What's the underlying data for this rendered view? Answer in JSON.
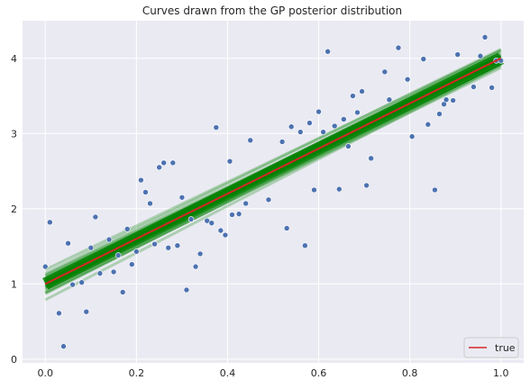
{
  "chart_data": {
    "type": "scatter",
    "title": "Curves drawn from the GP posterior distribution",
    "xlabel": "",
    "ylabel": "",
    "xlim": [
      -0.05,
      1.05
    ],
    "ylim": [
      -0.05,
      4.5
    ],
    "x_ticks": [
      0.0,
      0.2,
      0.4,
      0.6,
      0.8,
      1.0
    ],
    "x_tick_labels": [
      "0.0",
      "0.2",
      "0.4",
      "0.6",
      "0.8",
      "1.0"
    ],
    "y_ticks": [
      0,
      1,
      2,
      3,
      4
    ],
    "y_tick_labels": [
      "0",
      "1",
      "2",
      "3",
      "4"
    ],
    "grid": true,
    "legend": {
      "position": "bottom-right",
      "entries": [
        "true"
      ]
    },
    "colors": {
      "background": "#eaeaf2",
      "grid": "#ffffff",
      "points": "#4c72b0",
      "posterior": "#008000",
      "true_line": "#d62728"
    },
    "true_line": {
      "x": [
        0.0,
        1.0
      ],
      "y": [
        1.0,
        4.0
      ]
    },
    "posterior_band": {
      "x": [
        0.0,
        1.0
      ],
      "mean": [
        1.0,
        4.0
      ],
      "spread_at_start": 0.22,
      "spread_at_end": 0.16,
      "n_curves": 24
    },
    "series": [
      {
        "x": [
          0.0,
          0.01,
          0.03,
          0.04,
          0.05,
          0.06,
          0.08,
          0.09,
          0.1,
          0.11,
          0.12,
          0.14,
          0.15,
          0.16,
          0.17,
          0.18,
          0.19,
          0.2,
          0.21,
          0.22,
          0.23,
          0.24,
          0.25,
          0.26,
          0.27,
          0.28,
          0.29,
          0.3,
          0.31,
          0.32,
          0.33,
          0.34,
          0.355,
          0.365,
          0.375,
          0.385,
          0.395,
          0.405,
          0.41,
          0.425,
          0.44,
          0.45,
          0.49,
          0.52,
          0.53,
          0.54,
          0.56,
          0.57,
          0.58,
          0.59,
          0.6,
          0.61,
          0.62,
          0.635,
          0.645,
          0.655,
          0.665,
          0.675,
          0.685,
          0.695,
          0.705,
          0.715,
          0.745,
          0.755,
          0.775,
          0.795,
          0.805,
          0.83,
          0.84,
          0.855,
          0.865,
          0.875,
          0.88,
          0.895,
          0.905,
          0.94,
          0.955,
          0.965,
          0.98,
          0.99,
          1.0
        ],
        "y": [
          1.23,
          1.82,
          0.61,
          0.17,
          1.54,
          0.99,
          1.02,
          0.63,
          1.48,
          1.89,
          1.14,
          1.59,
          1.16,
          1.38,
          0.89,
          1.73,
          1.26,
          1.43,
          2.38,
          2.22,
          2.07,
          1.53,
          2.55,
          2.61,
          1.48,
          2.61,
          1.51,
          2.15,
          0.92,
          1.86,
          1.23,
          1.4,
          1.84,
          1.81,
          3.08,
          1.71,
          1.65,
          2.63,
          1.92,
          1.93,
          2.07,
          2.91,
          2.12,
          2.89,
          1.74,
          3.09,
          3.02,
          1.51,
          3.14,
          2.25,
          3.29,
          3.02,
          4.09,
          3.1,
          2.26,
          3.19,
          2.83,
          3.5,
          3.28,
          3.56,
          2.31,
          2.67,
          3.82,
          3.45,
          4.14,
          3.72,
          2.96,
          3.99,
          3.12,
          2.25,
          3.26,
          3.39,
          3.45,
          3.44,
          4.05,
          3.62,
          4.03,
          4.28,
          3.61,
          3.97,
          3.97
        ]
      }
    ]
  }
}
